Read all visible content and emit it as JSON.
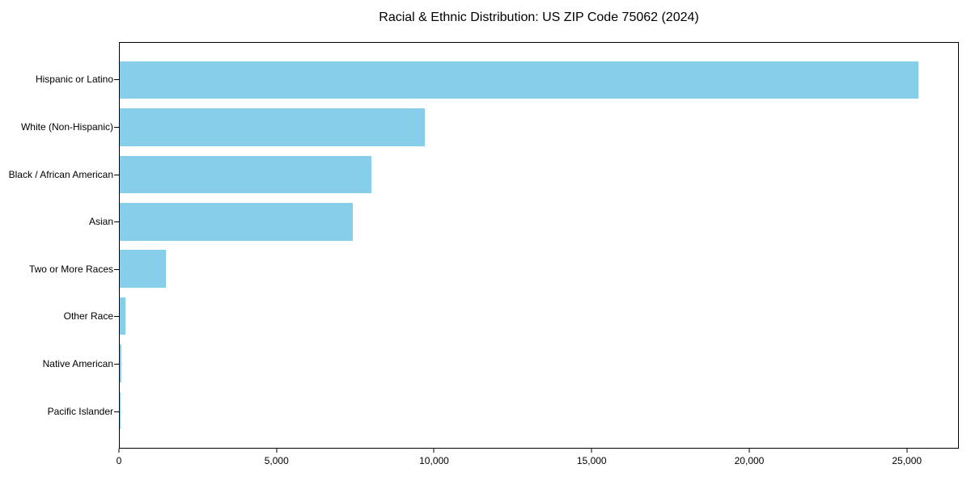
{
  "title": "Racial & Ethnic Distribution: US ZIP Code 75062 (2024)",
  "chart_data": {
    "type": "bar",
    "orientation": "horizontal",
    "title": "Racial & Ethnic Distribution: US ZIP Code 75062 (2024)",
    "xlabel": "",
    "ylabel": "",
    "categories": [
      "Hispanic or Latino",
      "White (Non-Hispanic)",
      "Black / African American",
      "Asian",
      "Two or More Races",
      "Other Race",
      "Native American",
      "Pacific Islander"
    ],
    "values": [
      25400,
      9700,
      8000,
      7400,
      1460,
      190,
      40,
      15
    ],
    "xlim": [
      0,
      26650
    ],
    "xticks": [
      0,
      5000,
      10000,
      15000,
      20000,
      25000
    ],
    "xtick_labels": [
      "0",
      "5,000",
      "10,000",
      "15,000",
      "20,000",
      "25,000"
    ],
    "bar_color": "#87CEEB",
    "axis_color": "#000000",
    "text_color": "#000000",
    "background_color": "#FFFFFF",
    "grid": false,
    "legend": "none"
  }
}
